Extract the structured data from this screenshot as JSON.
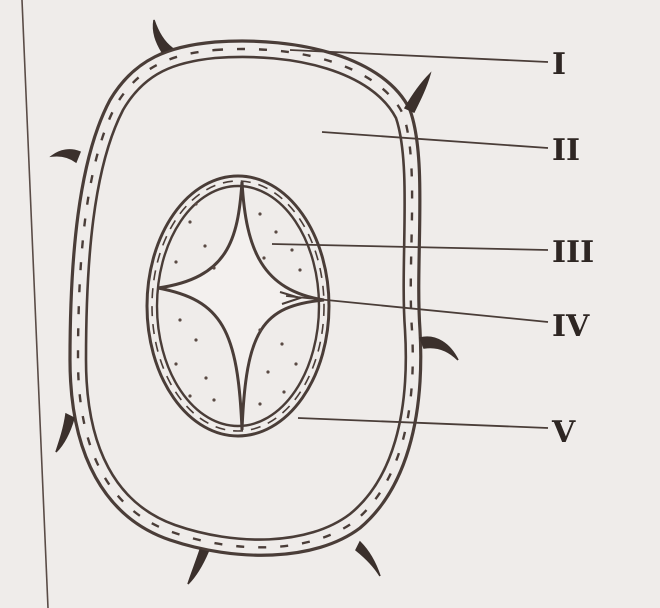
{
  "diagram": {
    "labels": [
      {
        "id": "I",
        "text": "I"
      },
      {
        "id": "II",
        "text": "II"
      },
      {
        "id": "III",
        "text": "III"
      },
      {
        "id": "IV",
        "text": "IV"
      },
      {
        "id": "V",
        "text": "V"
      }
    ]
  },
  "colors": {
    "background": "#efecea",
    "ink": "#4a3d38",
    "label": "#2e2623"
  }
}
